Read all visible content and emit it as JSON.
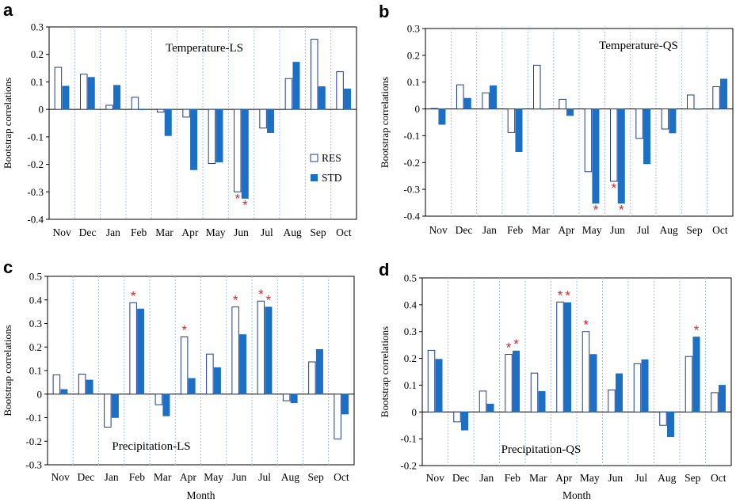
{
  "figure": {
    "xlabel_bottom": "Month",
    "legend": [
      "RES",
      "STD"
    ],
    "colors": {
      "res_fill": "#ffffff",
      "res_stroke": "#1f3d8c",
      "std_fill": "#1b6fc4",
      "divider": "#9ec3ec",
      "axis": "#000000",
      "star": "#e8202a"
    }
  },
  "chart_data": [
    {
      "panel": "a",
      "type": "bar",
      "title": "Temperature-LS",
      "ylabel": "Bootstrap correlations",
      "ylim": [
        -0.4,
        0.3
      ],
      "yticks": [
        "0.3",
        "0.2",
        "0.1",
        "0",
        "-0.1",
        "-0.2",
        "-0.3",
        "-0.4"
      ],
      "categories": [
        "Nov",
        "Dec",
        "Jan",
        "Feb",
        "Mar",
        "Apr",
        "May",
        "Jun",
        "Jul",
        "Aug",
        "Sep",
        "Oct"
      ],
      "series": [
        {
          "name": "RES",
          "values": [
            0.153,
            0.128,
            0.015,
            0.044,
            -0.01,
            -0.028,
            -0.197,
            -0.3,
            -0.068,
            0.112,
            0.255,
            0.137
          ]
        },
        {
          "name": "STD",
          "values": [
            0.085,
            0.117,
            0.088,
            0.0,
            -0.096,
            -0.22,
            -0.192,
            -0.324,
            -0.085,
            0.172,
            0.083,
            0.075
          ]
        }
      ],
      "significance": [
        {
          "category": "Jun",
          "series": "RES"
        },
        {
          "category": "Jun",
          "series": "STD"
        }
      ],
      "legend_shown": true
    },
    {
      "panel": "b",
      "type": "bar",
      "title": "Temperature-QS",
      "ylabel": "Bootstrap correlations",
      "ylim": [
        -0.4,
        0.3
      ],
      "yticks": [
        "0.3",
        "0.2",
        "0.1",
        "0",
        "-0.1",
        "-0.2",
        "-0.3",
        "-0.4"
      ],
      "categories": [
        "Nov",
        "Dec",
        "Jan",
        "Feb",
        "Mar",
        "Apr",
        "May",
        "Jun",
        "Jul",
        "Aug",
        "Sep",
        "Oct"
      ],
      "series": [
        {
          "name": "RES",
          "values": [
            0.002,
            0.09,
            0.06,
            -0.088,
            0.163,
            0.036,
            -0.234,
            -0.27,
            -0.11,
            -0.075,
            0.052,
            0.083
          ]
        },
        {
          "name": "STD",
          "values": [
            -0.058,
            0.04,
            0.087,
            -0.16,
            0.0,
            -0.025,
            -0.352,
            -0.352,
            -0.205,
            -0.09,
            0.0,
            0.112
          ]
        }
      ],
      "significance": [
        {
          "category": "May",
          "series": "STD"
        },
        {
          "category": "Jun",
          "series": "RES"
        },
        {
          "category": "Jun",
          "series": "STD"
        }
      ],
      "legend_shown": false
    },
    {
      "panel": "c",
      "type": "bar",
      "title": "Precipitation-LS",
      "ylabel": "Bootstrap correlations",
      "ylim": [
        -0.3,
        0.5
      ],
      "yticks": [
        "0.5",
        "0.4",
        "0.3",
        "0.2",
        "0.1",
        "0",
        "-0.1",
        "-0.2",
        "-0.3"
      ],
      "categories": [
        "Nov",
        "Dec",
        "Jan",
        "Feb",
        "Mar",
        "Apr",
        "May",
        "Jun",
        "Jul",
        "Aug",
        "Sep",
        "Oct"
      ],
      "series": [
        {
          "name": "RES",
          "values": [
            0.082,
            0.085,
            -0.14,
            0.388,
            -0.045,
            0.243,
            0.17,
            0.37,
            0.395,
            -0.028,
            0.137,
            -0.19
          ]
        },
        {
          "name": "STD",
          "values": [
            0.02,
            0.06,
            -0.1,
            0.362,
            -0.093,
            0.067,
            0.113,
            0.253,
            0.37,
            -0.037,
            0.19,
            -0.085
          ]
        }
      ],
      "significance": [
        {
          "category": "Feb",
          "series": "RES"
        },
        {
          "category": "Apr",
          "series": "RES"
        },
        {
          "category": "Jun",
          "series": "RES"
        },
        {
          "category": "Jul",
          "series": "RES"
        },
        {
          "category": "Jul",
          "series": "STD"
        }
      ],
      "legend_shown": false
    },
    {
      "panel": "d",
      "type": "bar",
      "title": "Precipitation-QS",
      "ylabel": "Bootstrap correlations",
      "ylim": [
        -0.2,
        0.5
      ],
      "yticks": [
        "0.5",
        "0.4",
        "0.3",
        "0.2",
        "0.1",
        "0",
        "-0.1",
        "-0.2"
      ],
      "categories": [
        "Nov",
        "Dec",
        "Jan",
        "Feb",
        "Mar",
        "Apr",
        "May",
        "Jun",
        "Jul",
        "Aug",
        "Sep",
        "Oct"
      ],
      "series": [
        {
          "name": "RES",
          "values": [
            0.23,
            -0.037,
            0.078,
            0.215,
            0.145,
            0.41,
            0.3,
            0.082,
            0.18,
            -0.05,
            0.207,
            0.072
          ]
        },
        {
          "name": "STD",
          "values": [
            0.197,
            -0.068,
            0.03,
            0.228,
            0.077,
            0.408,
            0.215,
            0.143,
            0.195,
            -0.093,
            0.28,
            0.1
          ]
        }
      ],
      "significance": [
        {
          "category": "Feb",
          "series": "RES"
        },
        {
          "category": "Feb",
          "series": "STD"
        },
        {
          "category": "Apr",
          "series": "RES"
        },
        {
          "category": "Apr",
          "series": "STD"
        },
        {
          "category": "May",
          "series": "RES"
        },
        {
          "category": "Sep",
          "series": "STD"
        }
      ],
      "legend_shown": false
    }
  ]
}
